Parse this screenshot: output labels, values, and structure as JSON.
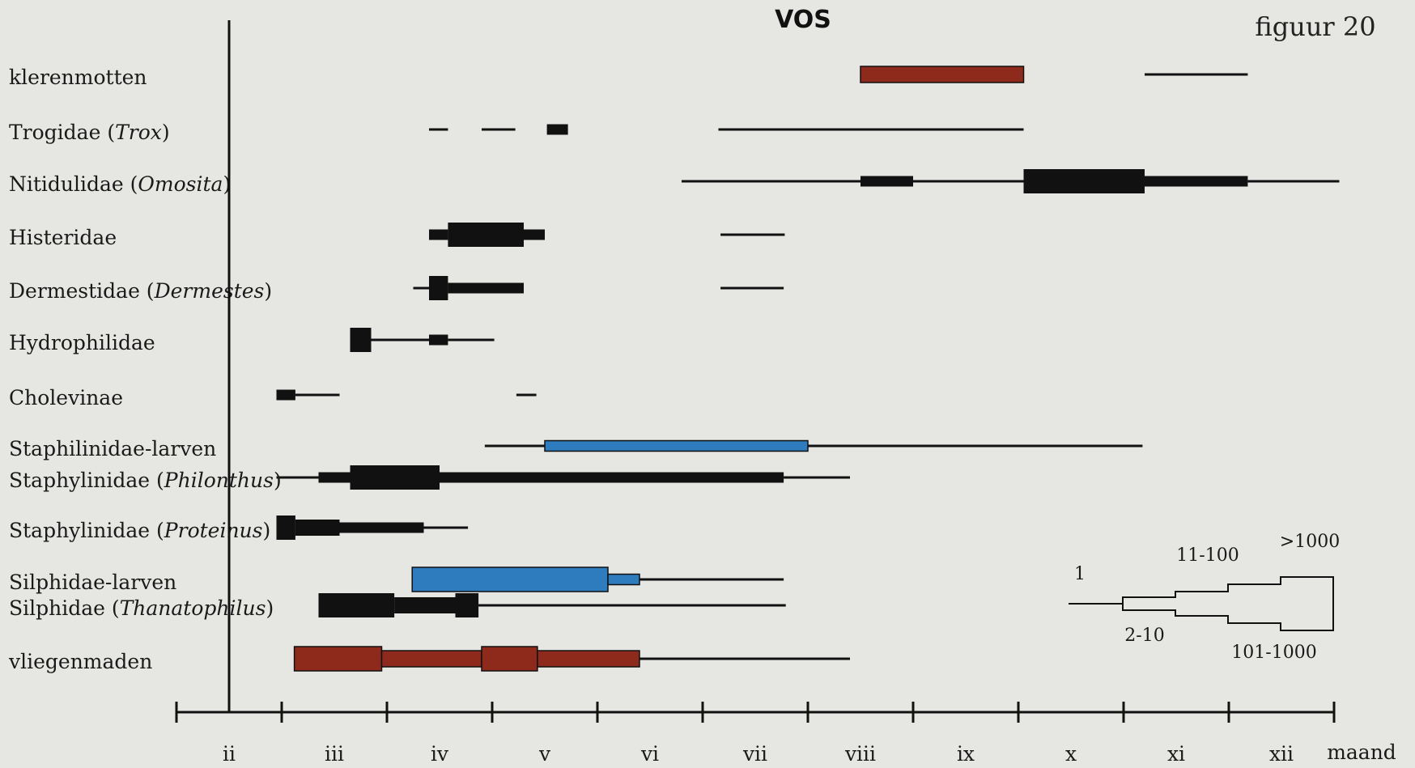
{
  "chart_data": {
    "type": "range-bar",
    "title": "VOS",
    "figure_label": "figuur 20",
    "x_axis": {
      "unit_label": "maand",
      "ticks": [
        "ii",
        "iii",
        "iv",
        "v",
        "vi",
        "vii",
        "viii",
        "ix",
        "x",
        "xi",
        "xii"
      ],
      "range": [
        1.5,
        12.5
      ]
    },
    "colors": {
      "black": "#111111",
      "red": "#8e2a1c",
      "blue": "#2e7bbd"
    },
    "legend": {
      "classes": [
        "1",
        "2-10",
        "11-100",
        "101-1000",
        ">1000"
      ]
    },
    "rows": [
      {
        "label": "klerenmotten",
        "italic": "",
        "suffix": "",
        "color": "red",
        "segments": [
          [
            8.0,
            9.55,
            4
          ],
          [
            10.7,
            11.68,
            1
          ]
        ]
      },
      {
        "label": "Trogidae (",
        "italic": "Trox",
        "suffix": ")",
        "color": "black",
        "segments": [
          [
            3.9,
            4.08,
            1
          ],
          [
            4.4,
            4.72,
            1
          ],
          [
            5.02,
            5.22,
            3
          ],
          [
            6.65,
            9.55,
            1
          ]
        ]
      },
      {
        "label": "Nitidulidae (",
        "italic": "Omosita",
        "suffix": ")",
        "color": "black",
        "segments": [
          [
            6.3,
            8.0,
            1
          ],
          [
            8.0,
            8.5,
            3
          ],
          [
            8.5,
            9.55,
            1
          ],
          [
            9.55,
            10.7,
            5
          ],
          [
            10.7,
            11.68,
            3
          ],
          [
            11.68,
            12.55,
            1
          ]
        ]
      },
      {
        "label": "Histeridae",
        "italic": "",
        "suffix": "",
        "color": "black",
        "segments": [
          [
            3.9,
            4.08,
            3
          ],
          [
            4.08,
            4.8,
            5
          ],
          [
            4.8,
            5.0,
            3
          ],
          [
            6.67,
            7.28,
            1
          ]
        ]
      },
      {
        "label": "Dermestidae (",
        "italic": "Dermestes",
        "suffix": ")",
        "color": "black",
        "segments": [
          [
            3.75,
            3.9,
            1
          ],
          [
            3.9,
            4.08,
            5
          ],
          [
            4.08,
            4.8,
            3
          ],
          [
            6.67,
            7.27,
            1
          ]
        ]
      },
      {
        "label": "Hydrophilidae",
        "italic": "",
        "suffix": "",
        "color": "black",
        "segments": [
          [
            3.15,
            3.35,
            5
          ],
          [
            3.35,
            3.9,
            1
          ],
          [
            3.9,
            4.08,
            3
          ],
          [
            4.08,
            4.52,
            1
          ]
        ]
      },
      {
        "label": "Cholevinae",
        "italic": "",
        "suffix": "",
        "color": "black",
        "segments": [
          [
            2.45,
            2.63,
            3
          ],
          [
            2.63,
            3.05,
            1
          ],
          [
            4.73,
            4.92,
            1
          ]
        ]
      },
      {
        "label": "Staphilinidae-larven",
        "italic": "",
        "suffix": "",
        "color": "blue",
        "segments": [
          [
            4.43,
            5.0,
            1
          ],
          [
            5.0,
            7.5,
            3
          ],
          [
            7.5,
            10.68,
            1
          ]
        ]
      },
      {
        "label": "Staphylinidae (",
        "italic": "Philonthus",
        "suffix": ")",
        "color": "black",
        "segments": [
          [
            2.45,
            2.85,
            1
          ],
          [
            2.85,
            3.15,
            3
          ],
          [
            3.15,
            4.0,
            5
          ],
          [
            4.0,
            7.27,
            3
          ],
          [
            7.27,
            7.9,
            1
          ]
        ]
      },
      {
        "label": "Staphylinidae (",
        "italic": "Proteinus",
        "suffix": ")",
        "color": "black",
        "segments": [
          [
            2.45,
            2.63,
            5
          ],
          [
            2.63,
            3.05,
            4
          ],
          [
            3.05,
            3.85,
            3
          ],
          [
            3.85,
            4.27,
            1
          ]
        ]
      },
      {
        "label": "Silphidae-larven",
        "italic": "",
        "suffix": "",
        "color": "blue",
        "segments": [
          [
            3.74,
            5.6,
            5
          ],
          [
            5.6,
            5.9,
            3
          ],
          [
            5.9,
            7.27,
            1
          ]
        ]
      },
      {
        "label": "Silphidae (",
        "italic": "Thanatophilus",
        "suffix": ")",
        "color": "black",
        "segments": [
          [
            2.85,
            3.57,
            5
          ],
          [
            3.57,
            4.15,
            4
          ],
          [
            4.15,
            4.37,
            5
          ],
          [
            4.37,
            7.29,
            1
          ]
        ]
      },
      {
        "label": "vliegenmaden",
        "italic": "",
        "suffix": "",
        "color": "red",
        "segments": [
          [
            2.62,
            3.45,
            5
          ],
          [
            3.45,
            4.4,
            4
          ],
          [
            4.4,
            4.93,
            5
          ],
          [
            4.93,
            5.9,
            4
          ],
          [
            5.9,
            7.9,
            1
          ]
        ]
      }
    ]
  }
}
